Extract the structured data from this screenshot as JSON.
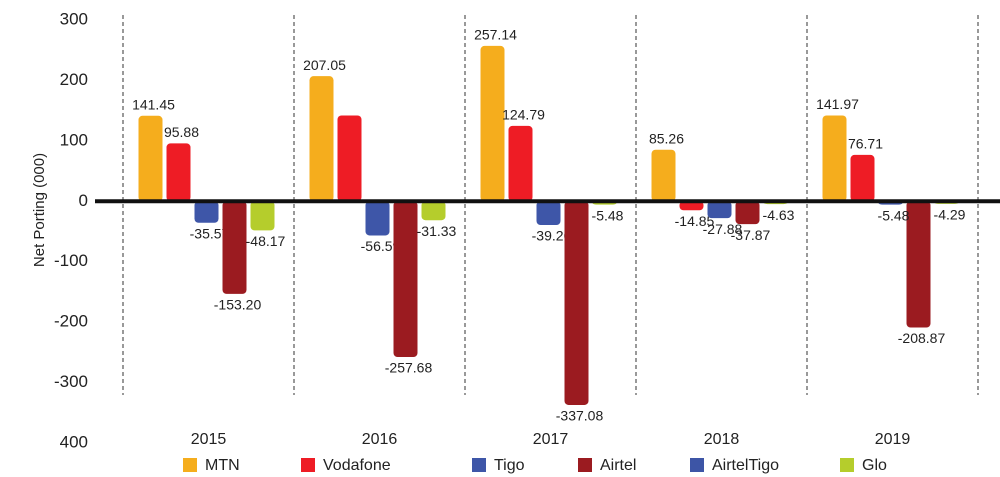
{
  "chart_data": {
    "type": "bar",
    "y_label": "Net Porting (000)",
    "categories": [
      "2015",
      "2016",
      "2017",
      "2018",
      "2019"
    ],
    "series": [
      {
        "name": "MTN",
        "color": "#f5ad1d",
        "values": [
          141.45,
          207.05,
          257.14,
          85.26,
          141.97
        ],
        "value_labels": [
          "141.45",
          "207.05",
          "257.14",
          "85.26",
          "141.97"
        ]
      },
      {
        "name": "Vodafone",
        "color": "#ee1c25",
        "values": [
          95.88,
          142,
          124.79,
          -14.85,
          76.71
        ],
        "value_labels": [
          "95.88",
          null,
          "124.79",
          "-14.85",
          "76.71"
        ]
      },
      {
        "name": "Tigo",
        "color": "#3e56a8",
        "values": [
          -35.57,
          -56.59,
          -39.26,
          null,
          null
        ],
        "value_labels": [
          "-35.57",
          "-56.59",
          "-39.26",
          null,
          null
        ]
      },
      {
        "name": "Airtel",
        "color": "#9b1b20",
        "values": [
          -153.2,
          -257.68,
          -337.08,
          -37.87,
          -208.87
        ],
        "value_labels": [
          "-153.20",
          "-257.68",
          "-337.08",
          "-37.87",
          "-208.87"
        ]
      },
      {
        "name": "AirtelTigo",
        "color": "#3d55a6",
        "values": [
          null,
          null,
          null,
          -27.88,
          -5.48
        ],
        "value_labels": [
          null,
          null,
          null,
          "-27.88",
          "-5.48"
        ]
      },
      {
        "name": "Glo",
        "color": "#b5cd2c",
        "values": [
          -48.17,
          -31.33,
          -5.48,
          -4.63,
          -4.29
        ],
        "value_labels": [
          "-48.17",
          "-31.33",
          "-5.48",
          "-4.63",
          "-4.29"
        ]
      }
    ],
    "ylim": [
      -400,
      300
    ],
    "yticks": [
      {
        "value": -400,
        "label": "400"
      },
      -300,
      -200,
      -100,
      0,
      100,
      200,
      300
    ]
  }
}
